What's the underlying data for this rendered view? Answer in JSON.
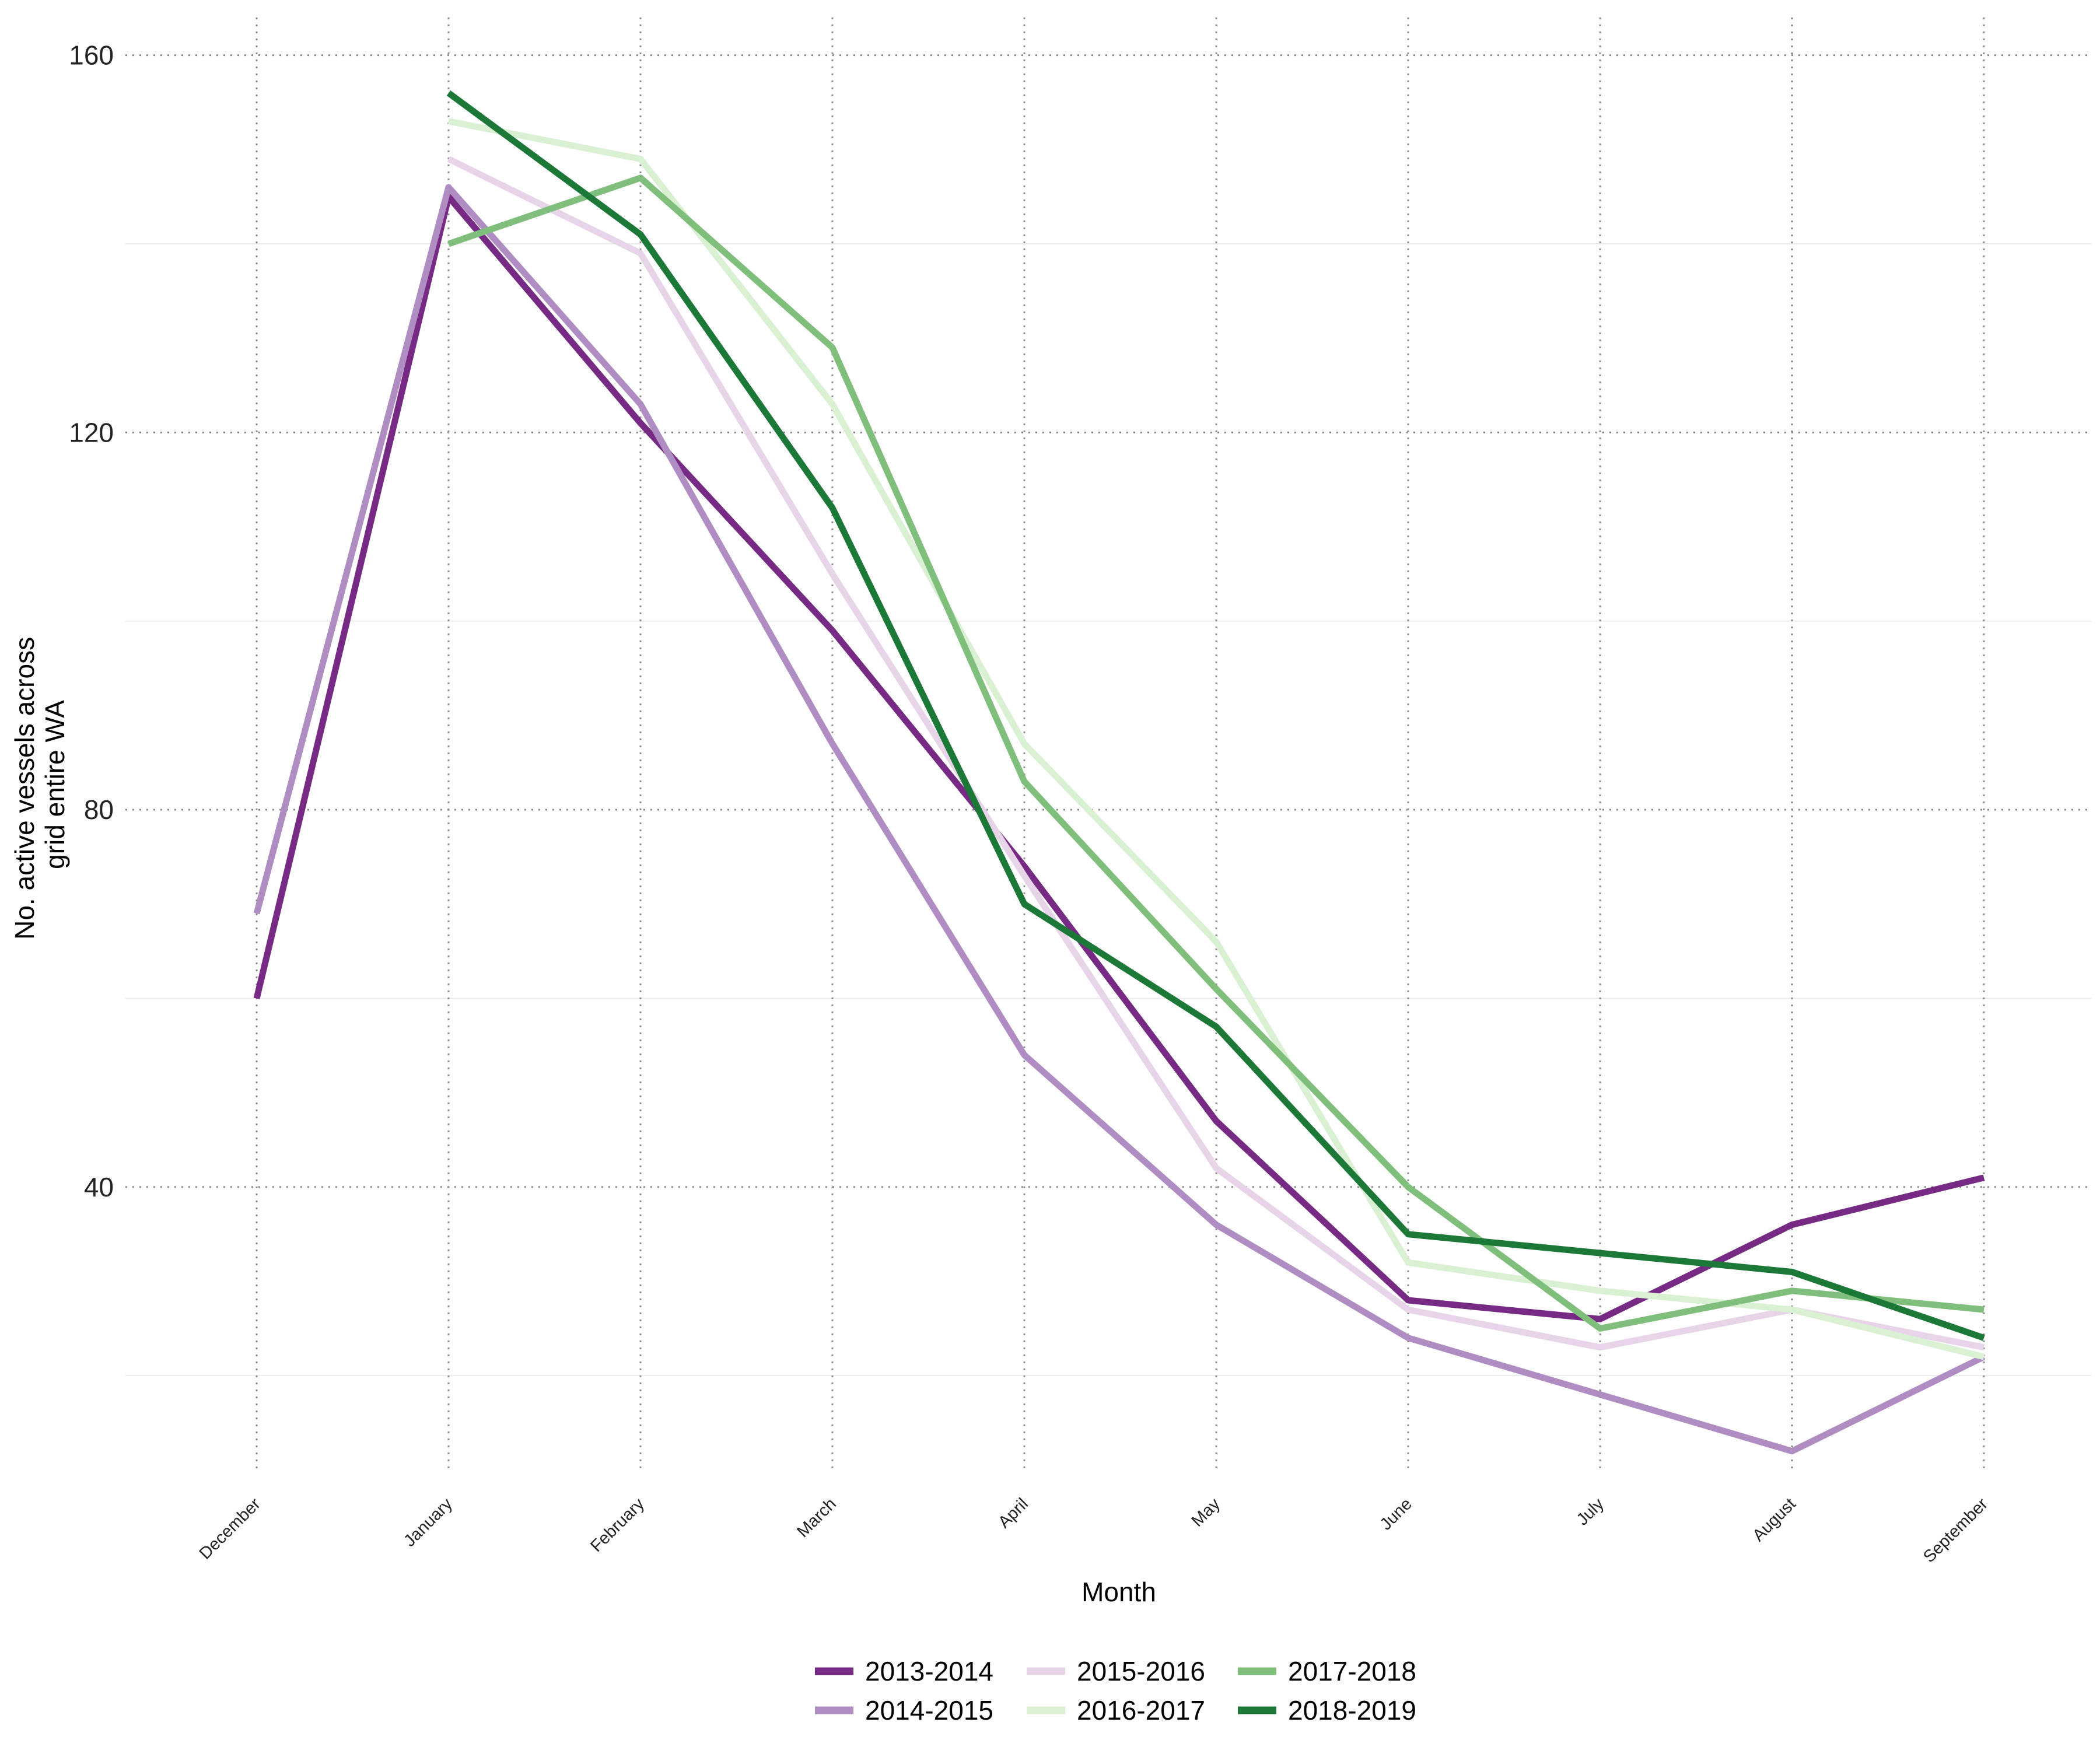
{
  "chart_data": {
    "type": "line",
    "title": "",
    "xlabel": "Month",
    "ylabel_lines": [
      "No. active vessels across",
      "grid entire WA"
    ],
    "categories": [
      "December",
      "January",
      "February",
      "March",
      "April",
      "May",
      "June",
      "July",
      "August",
      "September"
    ],
    "ylim": [
      10,
      164
    ],
    "yticks": [
      40,
      80,
      120,
      160
    ],
    "grid": "major dotted, minor solid light",
    "legend_position": "bottom",
    "series": [
      {
        "name": "2013-2014",
        "color": "#762a83",
        "values": [
          60,
          145,
          121,
          99,
          74,
          47,
          28,
          26,
          36,
          41
        ]
      },
      {
        "name": "2014-2015",
        "color": "#af8dc3",
        "values": [
          69,
          146,
          123,
          87,
          54,
          36,
          24,
          18,
          12,
          22
        ]
      },
      {
        "name": "2015-2016",
        "color": "#e7d4e8",
        "values": [
          null,
          149,
          139,
          105,
          73,
          42,
          27,
          23,
          27,
          23
        ]
      },
      {
        "name": "2016-2017",
        "color": "#d9f0d3",
        "values": [
          null,
          153,
          149,
          123,
          87,
          66,
          32,
          29,
          27,
          22
        ]
      },
      {
        "name": "2017-2018",
        "color": "#7fbf7b",
        "values": [
          null,
          140,
          147,
          129,
          83,
          61,
          40,
          25,
          29,
          27
        ]
      },
      {
        "name": "2018-2019",
        "color": "#1b7837",
        "values": [
          null,
          156,
          141,
          112,
          70,
          57,
          35,
          33,
          31,
          24
        ]
      }
    ]
  }
}
